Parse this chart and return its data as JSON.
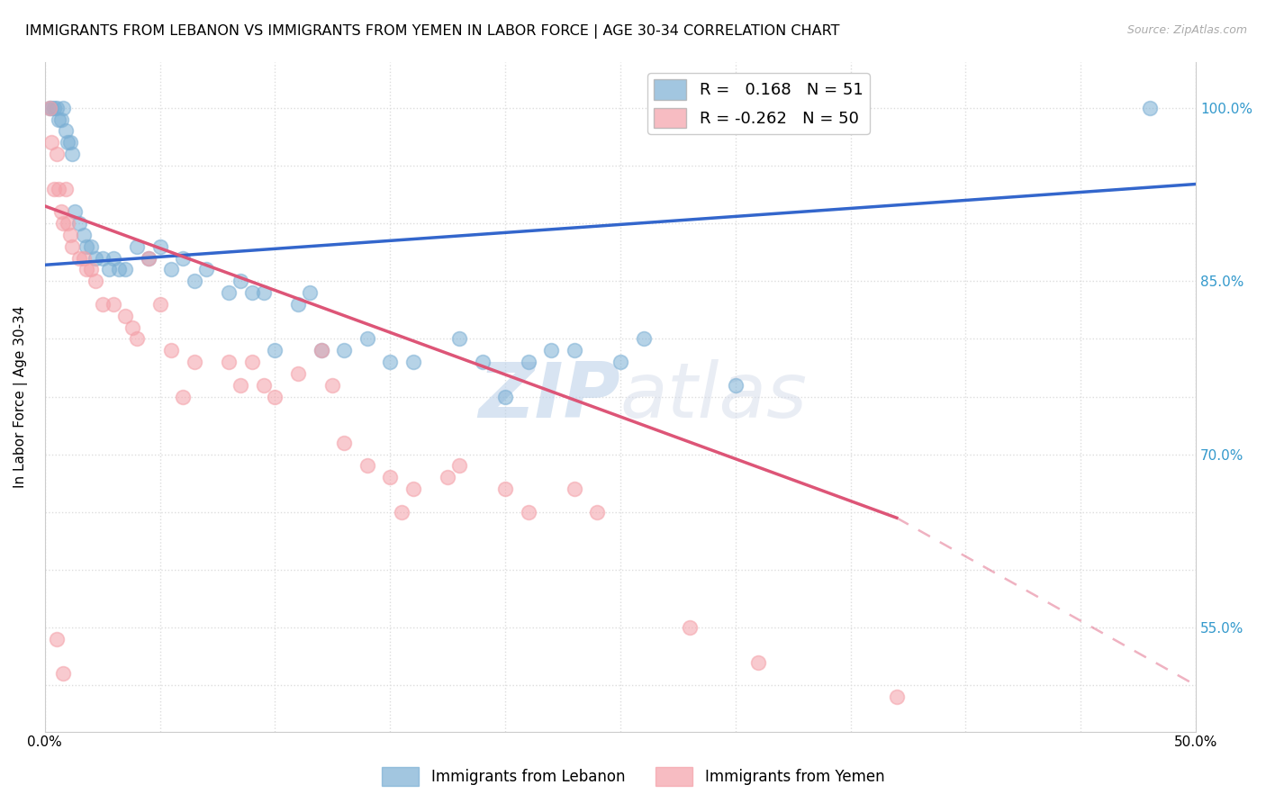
{
  "title": "IMMIGRANTS FROM LEBANON VS IMMIGRANTS FROM YEMEN IN LABOR FORCE | AGE 30-34 CORRELATION CHART",
  "source": "Source: ZipAtlas.com",
  "ylabel": "In Labor Force | Age 30-34",
  "xlim": [
    0.0,
    0.5
  ],
  "ylim": [
    0.46,
    1.04
  ],
  "xticks": [
    0.0,
    0.05,
    0.1,
    0.15,
    0.2,
    0.25,
    0.3,
    0.35,
    0.4,
    0.45,
    0.5
  ],
  "xticklabels": [
    "0.0%",
    "",
    "",
    "",
    "",
    "",
    "",
    "",
    "",
    "",
    "50.0%"
  ],
  "ytick_positions": [
    0.5,
    0.55,
    0.6,
    0.65,
    0.7,
    0.75,
    0.8,
    0.85,
    0.9,
    0.95,
    1.0
  ],
  "ytick_labels_right": [
    "",
    "55.0%",
    "",
    "",
    "70.0%",
    "",
    "",
    "85.0%",
    "",
    "",
    "100.0%"
  ],
  "R_lebanon": 0.168,
  "N_lebanon": 51,
  "R_yemen": -0.262,
  "N_yemen": 50,
  "watermark_zip": "ZIP",
  "watermark_atlas": "atlas",
  "lebanon_color": "#7bafd4",
  "yemen_color": "#f4a0a8",
  "line_lebanon_color": "#3366cc",
  "line_yemen_color": "#dd5577",
  "leb_line_x0": 0.0,
  "leb_line_y0": 0.864,
  "leb_line_x1": 0.5,
  "leb_line_y1": 0.934,
  "yem_line_x0": 0.0,
  "yem_line_y0": 0.915,
  "yem_line_x1_solid": 0.37,
  "yem_line_y1_solid": 0.645,
  "yem_line_x1_dash": 0.5,
  "yem_line_y1_dash": 0.5,
  "lebanon_x": [
    0.002,
    0.003,
    0.004,
    0.005,
    0.006,
    0.007,
    0.008,
    0.009,
    0.01,
    0.011,
    0.012,
    0.013,
    0.015,
    0.017,
    0.018,
    0.02,
    0.022,
    0.025,
    0.028,
    0.03,
    0.032,
    0.035,
    0.04,
    0.045,
    0.05,
    0.055,
    0.06,
    0.065,
    0.07,
    0.08,
    0.085,
    0.09,
    0.095,
    0.1,
    0.11,
    0.115,
    0.12,
    0.13,
    0.14,
    0.15,
    0.16,
    0.18,
    0.19,
    0.2,
    0.21,
    0.22,
    0.23,
    0.25,
    0.26,
    0.3,
    0.48
  ],
  "lebanon_y": [
    1.0,
    1.0,
    1.0,
    1.0,
    0.99,
    0.99,
    1.0,
    0.98,
    0.97,
    0.97,
    0.96,
    0.91,
    0.9,
    0.89,
    0.88,
    0.88,
    0.87,
    0.87,
    0.86,
    0.87,
    0.86,
    0.86,
    0.88,
    0.87,
    0.88,
    0.86,
    0.87,
    0.85,
    0.86,
    0.84,
    0.85,
    0.84,
    0.84,
    0.79,
    0.83,
    0.84,
    0.79,
    0.79,
    0.8,
    0.78,
    0.78,
    0.8,
    0.78,
    0.75,
    0.78,
    0.79,
    0.79,
    0.78,
    0.8,
    0.76,
    1.0
  ],
  "yemen_x": [
    0.002,
    0.003,
    0.004,
    0.005,
    0.006,
    0.007,
    0.008,
    0.009,
    0.01,
    0.011,
    0.012,
    0.015,
    0.017,
    0.018,
    0.02,
    0.022,
    0.025,
    0.03,
    0.035,
    0.038,
    0.04,
    0.045,
    0.05,
    0.055,
    0.06,
    0.065,
    0.08,
    0.085,
    0.09,
    0.095,
    0.1,
    0.11,
    0.12,
    0.125,
    0.13,
    0.14,
    0.15,
    0.155,
    0.16,
    0.175,
    0.18,
    0.2,
    0.21,
    0.23,
    0.24,
    0.28,
    0.31,
    0.37,
    0.005,
    0.008
  ],
  "yemen_y": [
    1.0,
    0.97,
    0.93,
    0.96,
    0.93,
    0.91,
    0.9,
    0.93,
    0.9,
    0.89,
    0.88,
    0.87,
    0.87,
    0.86,
    0.86,
    0.85,
    0.83,
    0.83,
    0.82,
    0.81,
    0.8,
    0.87,
    0.83,
    0.79,
    0.75,
    0.78,
    0.78,
    0.76,
    0.78,
    0.76,
    0.75,
    0.77,
    0.79,
    0.76,
    0.71,
    0.69,
    0.68,
    0.65,
    0.67,
    0.68,
    0.69,
    0.67,
    0.65,
    0.67,
    0.65,
    0.55,
    0.52,
    0.49,
    0.54,
    0.51
  ],
  "background_color": "#ffffff",
  "grid_color": "#dddddd"
}
